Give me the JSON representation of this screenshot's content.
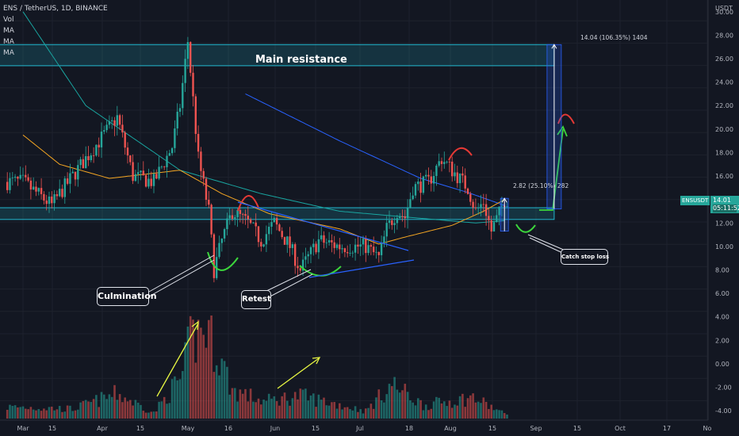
{
  "legend": {
    "symbol": "ENS / TetherUS, 1D, BINANCE",
    "vol": "Vol",
    "ma1": "MA",
    "ma2": "MA",
    "ma3": "MA"
  },
  "colors": {
    "background": "#131722",
    "up": "#26a69a",
    "down": "#ef5350",
    "zone": "#22b8cf",
    "ma_blue": "#2962ff",
    "ma_orange": "#f5a623",
    "ma_teal": "#19a5a0",
    "green_arrow": "#3cd63c",
    "yellow_arrow": "#e6f542",
    "red_arc": "#e53935"
  },
  "annotations": {
    "main_resistance": "Main resistance",
    "culmination": "Culmination",
    "retest": "Retest",
    "catch_stop_loss": "Catch stop loss",
    "measure_big": "14.04 (106.35%) 1404",
    "measure_small": "2.82 (25.10%) 282"
  },
  "price_badge": {
    "symbol": "ENSUSDT",
    "price": "14.01",
    "countdown": "05:11:52"
  },
  "chart_data": {
    "type": "candlestick",
    "x_label": "",
    "y_unit": "USDT",
    "y_ticks": [
      "30.00",
      "28.00",
      "26.00",
      "24.00",
      "22.00",
      "20.00",
      "18.00",
      "16.00",
      "14.00",
      "12.00",
      "10.00",
      "8.00",
      "6.00",
      "4.00",
      "2.00",
      "0.00",
      "-2.00",
      "-4.00"
    ],
    "x_ticks": [
      "Mar",
      "15",
      "Apr",
      "15",
      "May",
      "16",
      "Jun",
      "15",
      "Jul",
      "18",
      "Aug",
      "15",
      "Sep",
      "15",
      "Oct",
      "17",
      "No"
    ],
    "ylim": [
      -4.8,
      31
    ],
    "price_path": [
      {
        "date": "2022-03-01",
        "price": 15.5
      },
      {
        "date": "2022-03-12",
        "price": 13.5
      },
      {
        "date": "2022-03-15",
        "price": 14.5
      },
      {
        "date": "2022-03-25",
        "price": 17.5
      },
      {
        "date": "2022-04-06",
        "price": 21.0
      },
      {
        "date": "2022-04-12",
        "price": 16.0
      },
      {
        "date": "2022-04-20",
        "price": 15.5
      },
      {
        "date": "2022-04-27",
        "price": 18.5
      },
      {
        "date": "2022-04-30",
        "price": 22.0
      },
      {
        "date": "2022-05-03",
        "price": 27.5
      },
      {
        "date": "2022-05-07",
        "price": 17.5
      },
      {
        "date": "2022-05-11",
        "price": 13.0
      },
      {
        "date": "2022-05-13",
        "price": 8.0
      },
      {
        "date": "2022-05-16",
        "price": 10.5
      },
      {
        "date": "2022-05-20",
        "price": 13.0
      },
      {
        "date": "2022-05-26",
        "price": 12.0
      },
      {
        "date": "2022-05-31",
        "price": 10.5
      },
      {
        "date": "2022-06-05",
        "price": 12.0
      },
      {
        "date": "2022-06-11",
        "price": 10.0
      },
      {
        "date": "2022-06-15",
        "price": 8.0
      },
      {
        "date": "2022-06-22",
        "price": 10.5
      },
      {
        "date": "2022-06-30",
        "price": 10.0
      },
      {
        "date": "2022-07-10",
        "price": 10.0
      },
      {
        "date": "2022-07-15",
        "price": 9.0
      },
      {
        "date": "2022-07-18",
        "price": 11.5
      },
      {
        "date": "2022-07-22",
        "price": 13.0
      },
      {
        "date": "2022-07-25",
        "price": 12.5
      },
      {
        "date": "2022-07-28",
        "price": 15.0
      },
      {
        "date": "2022-08-03",
        "price": 15.5
      },
      {
        "date": "2022-08-08",
        "price": 17.5
      },
      {
        "date": "2022-08-14",
        "price": 16.0
      },
      {
        "date": "2022-08-18",
        "price": 15.0
      },
      {
        "date": "2022-08-21",
        "price": 13.0
      },
      {
        "date": "2022-08-24",
        "price": 13.8
      },
      {
        "date": "2022-08-27",
        "price": 11.3
      },
      {
        "date": "2022-08-30",
        "price": 12.8
      },
      {
        "date": "2022-09-01",
        "price": 14.0
      }
    ],
    "volume_level_path": [
      {
        "date": "2022-03-01",
        "level": 0.12
      },
      {
        "date": "2022-03-20",
        "level": 0.1
      },
      {
        "date": "2022-04-06",
        "level": 0.26
      },
      {
        "date": "2022-04-20",
        "level": 0.06
      },
      {
        "date": "2022-05-01",
        "level": 0.45
      },
      {
        "date": "2022-05-04",
        "level": 0.82
      },
      {
        "date": "2022-05-10",
        "level": 0.95
      },
      {
        "date": "2022-05-13",
        "level": 0.8
      },
      {
        "date": "2022-05-20",
        "level": 0.3
      },
      {
        "date": "2022-06-01",
        "level": 0.18
      },
      {
        "date": "2022-06-15",
        "level": 0.24
      },
      {
        "date": "2022-07-10",
        "level": 0.08
      },
      {
        "date": "2022-07-20",
        "level": 0.36
      },
      {
        "date": "2022-08-01",
        "level": 0.14
      },
      {
        "date": "2022-08-20",
        "level": 0.22
      },
      {
        "date": "2022-09-01",
        "level": 0.05
      }
    ],
    "moving_averages": [
      {
        "color": "#2962ff",
        "path": [
          {
            "date": "2022-05-25",
            "price": 23.0
          },
          {
            "date": "2022-06-30",
            "price": 19.0
          },
          {
            "date": "2022-07-31",
            "price": 15.8
          },
          {
            "date": "2022-08-18",
            "price": 14.6
          },
          {
            "date": "2022-09-01",
            "price": 13.5
          }
        ]
      },
      {
        "color": "#19a5a0",
        "path": [
          {
            "date": "2022-03-01",
            "price": 30.0
          },
          {
            "date": "2022-03-25",
            "price": 22.0
          },
          {
            "date": "2022-04-30",
            "price": 16.5
          },
          {
            "date": "2022-05-31",
            "price": 14.5
          },
          {
            "date": "2022-06-30",
            "price": 13.0
          },
          {
            "date": "2022-07-31",
            "price": 12.4
          },
          {
            "date": "2022-08-21",
            "price": 12.0
          },
          {
            "date": "2022-09-01",
            "price": 12.2
          }
        ]
      },
      {
        "color": "#f5a623",
        "path": [
          {
            "date": "2022-03-01",
            "price": 19.5
          },
          {
            "date": "2022-03-15",
            "price": 17.0
          },
          {
            "date": "2022-04-03",
            "price": 15.8
          },
          {
            "date": "2022-04-30",
            "price": 16.5
          },
          {
            "date": "2022-05-16",
            "price": 14.5
          },
          {
            "date": "2022-06-03",
            "price": 12.8
          },
          {
            "date": "2022-06-30",
            "price": 11.5
          },
          {
            "date": "2022-07-15",
            "price": 10.2
          },
          {
            "date": "2022-07-25",
            "price": 10.8
          },
          {
            "date": "2022-08-12",
            "price": 11.8
          },
          {
            "date": "2022-08-24",
            "price": 13.0
          },
          {
            "date": "2022-09-01",
            "price": 14.0
          }
        ]
      }
    ],
    "zones": [
      {
        "name": "Main resistance",
        "low": 25.4,
        "high": 27.2,
        "start": "2022-03-01",
        "end": "2022-09-20"
      },
      {
        "name": "",
        "low": 12.3,
        "high": 13.3,
        "start": "2022-03-01",
        "end": "2022-09-20"
      }
    ],
    "measures": [
      {
        "date": "2022-09-20",
        "from": 13.2,
        "to": 27.2
      },
      {
        "date": "2022-09-01",
        "from": 11.3,
        "to": 14.1
      }
    ]
  }
}
